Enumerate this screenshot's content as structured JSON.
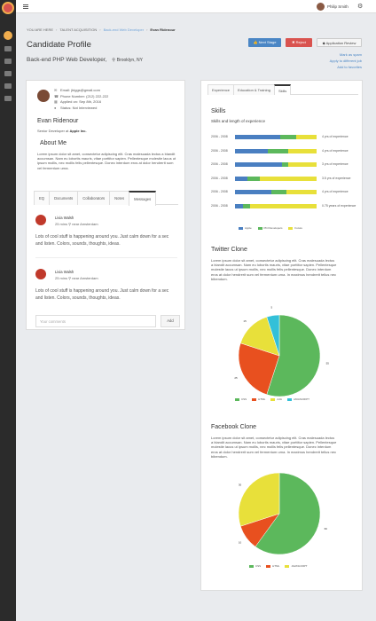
{
  "topbar": {
    "user_name": "Philip Smith"
  },
  "breadcrumb": {
    "home": "YOU ARE HERE",
    "section": "TALENT ACQUISITION",
    "job": "Back-end Web Developer",
    "current": "Evan Ridenour"
  },
  "header": {
    "title": "Candidate Profile",
    "position": "Back-end PHP Web Developer,",
    "location": "Brooklyn, NY",
    "buttons": {
      "next_stage": "Next Stage",
      "reject": "Reject",
      "review": "Application Review"
    },
    "links": [
      "Mark as spam",
      "Apply to different job",
      "Add to favorites"
    ]
  },
  "profile": {
    "email": "Email: jbiggs@gmail.com",
    "phone": "Phone Number: (212) 222-222",
    "applied": "Applied on: Sep 8th, 2016",
    "status": "Status: Not Interviewed",
    "name": "Evan Ridenour",
    "role_prefix": "Senior Developer at",
    "company": "Apple Inc.",
    "about_heading": "About Me",
    "about_text": "Lorem ipsum dolor sit amet, consectetur adipiscing elit. Cras malesuada lectus a blandit accumsan. Nam eu lobortis mauris, vitae porttitor sapien. Pellentesque molestie lacus ut ipsum mollis, nec mollis felis pellentesque. Donec interdum eros at dolor hendrerit sum vel fermentum urna."
  },
  "tabs": [
    "EQ",
    "Documents",
    "Collaborators",
    "Notes",
    "Messages"
  ],
  "messages": [
    {
      "name": "Livia Walsh",
      "time": "25 mins",
      "location": "near Amsterdam",
      "text": "Lots of cool stuff is happening around you. Just calm down for a sec and listen. Colors, sounds, thoughts, ideas."
    },
    {
      "name": "Livia Walsh",
      "time": "25 mins",
      "location": "near Amsterdam",
      "text": "Lots of cool stuff is happening around you. Just calm down for a sec and listen. Colors, sounds, thoughts, ideas."
    }
  ],
  "comment": {
    "placeholder": "Your comments",
    "add_label": "Add"
  },
  "right_tabs": [
    "Experience",
    "Education & Training",
    "Skills"
  ],
  "skills": {
    "heading": "Skills",
    "subheading": "Skills and length of experience",
    "rows": [
      {
        "years": "2006 - 2008",
        "label": "4 yrs of experience",
        "segments": [
          0.55,
          0.2,
          0.25
        ]
      },
      {
        "years": "2006 - 2008",
        "label": "4 yrs of experience",
        "segments": [
          0.4,
          0.25,
          0.35
        ]
      },
      {
        "years": "2006 - 2008",
        "label": "3 yrs of experience",
        "segments": [
          0.58,
          0.07,
          0.35
        ]
      },
      {
        "years": "2006 - 2008",
        "label": "3.5 yrs of experience",
        "segments": [
          0.15,
          0.15,
          0.7
        ]
      },
      {
        "years": "2006 - 2008",
        "label": "4 yrs of experience",
        "segments": [
          0.45,
          0.18,
          0.37
        ]
      },
      {
        "years": "2006 - 2008",
        "label": "0.75 years of experience",
        "segments": [
          0.1,
          0.08,
          0.82
        ]
      }
    ],
    "legend": [
      "Apple",
      "Phil Developers",
      "Future"
    ],
    "colors": [
      "#4a7fc1",
      "#5cb85c",
      "#e8e03a"
    ]
  },
  "twitter": {
    "heading": "Twitter Clone",
    "text": "Lorem ipsum dolor sit amet, consectetur adipiscing elit. Cras malesuada lectus a blandit accumsan. Nam eu lobortis mauris, vitae porttitor sapien. Pellentesque molestie lacus ut ipsum mollis, nec mollis felis pellentesque. Donec interdum eros at dolor hendrerit sum vel fermentum urna. In maximus hendrerit tellus nec bibendum."
  },
  "facebook": {
    "heading": "Facebook Clone",
    "text": "Lorem ipsum dolor sit amet, consectetur adipiscing elit. Cras malesuada lectus a blandit accumsan. Nam eu lobortis mauris, vitae porttitor sapien. Pellentesque molestie lacus ut ipsum mollis, nec mollis felis pellentesque. Donec interdum eros at dolor hendrerit sum vel fermentum urna. In maximus hendrerit tellus nec bibendum."
  },
  "chart_data": [
    {
      "type": "pie",
      "categories": [
        "CSS",
        "HTML",
        "AJA",
        "JAVASCRIPT"
      ],
      "values": [
        55,
        25,
        15,
        5
      ],
      "colors": [
        "#5cb85c",
        "#e8501f",
        "#e8e03a",
        "#33c0d8"
      ]
    },
    {
      "type": "pie",
      "categories": [
        "CSS",
        "HTML",
        "JAVASCRIPT"
      ],
      "values": [
        60,
        10,
        30
      ],
      "colors": [
        "#5cb85c",
        "#e8501f",
        "#e8e03a"
      ]
    }
  ]
}
